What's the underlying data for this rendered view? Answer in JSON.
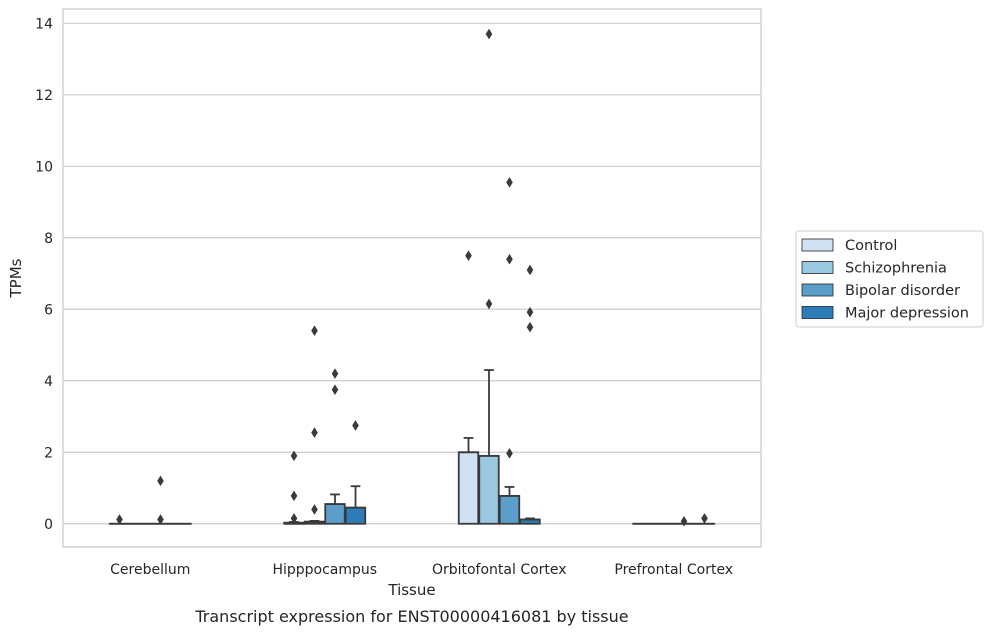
{
  "caption": "Transcript expression for ENST00000416081 by tissue",
  "chart_data": {
    "type": "box",
    "title": "",
    "xlabel": "Tissue",
    "ylabel": "TPMs",
    "ylim": [
      -0.65,
      14.4
    ],
    "yticks": [
      0,
      2,
      4,
      6,
      8,
      10,
      12,
      14
    ],
    "grid": "horizontal",
    "legend_position": "right",
    "categories": [
      "Cerebellum",
      "Hipppocampus",
      "Orbitofontal Cortex",
      "Prefrontal Cortex"
    ],
    "series": [
      {
        "name": "Control",
        "color": "#d0e1f2",
        "boxes": [
          {
            "q1": 0,
            "median": 0,
            "q3": 0,
            "whisker_low": 0,
            "whisker_high": 0,
            "outliers": [
              0.12
            ]
          },
          {
            "q1": 0,
            "median": 0,
            "q3": 0.03,
            "whisker_low": 0,
            "whisker_high": 0.05,
            "outliers": [
              0.15,
              0.78,
              1.9
            ]
          },
          {
            "q1": 0,
            "median": 2.0,
            "q3": 2.0,
            "whisker_low": 0,
            "whisker_high": 2.4,
            "outliers": [
              7.5
            ]
          },
          {
            "q1": 0,
            "median": 0,
            "q3": 0,
            "whisker_low": 0,
            "whisker_high": 0,
            "outliers": []
          }
        ]
      },
      {
        "name": "Schizophrenia",
        "color": "#9ac8e0",
        "boxes": [
          {
            "q1": 0,
            "median": 0,
            "q3": 0,
            "whisker_low": 0,
            "whisker_high": 0,
            "outliers": []
          },
          {
            "q1": 0,
            "median": 0.03,
            "q3": 0.06,
            "whisker_low": 0,
            "whisker_high": 0.08,
            "outliers": [
              0.4,
              2.55,
              5.4
            ]
          },
          {
            "q1": 0,
            "median": 1.9,
            "q3": 1.9,
            "whisker_low": 0,
            "whisker_high": 4.3,
            "outliers": [
              6.15,
              13.7
            ]
          },
          {
            "q1": 0,
            "median": 0,
            "q3": 0,
            "whisker_low": 0,
            "whisker_high": 0,
            "outliers": []
          }
        ]
      },
      {
        "name": "Bipolar disorder",
        "color": "#5a9ec9",
        "boxes": [
          {
            "q1": 0,
            "median": 0,
            "q3": 0,
            "whisker_low": 0,
            "whisker_high": 0,
            "outliers": [
              0.12,
              1.2
            ]
          },
          {
            "q1": 0,
            "median": 0.55,
            "q3": 0.55,
            "whisker_low": 0,
            "whisker_high": 0.82,
            "outliers": [
              3.75,
              4.2
            ]
          },
          {
            "q1": 0,
            "median": 0.78,
            "q3": 0.78,
            "whisker_low": 0,
            "whisker_high": 1.03,
            "outliers": [
              1.97,
              7.4,
              9.55
            ]
          },
          {
            "q1": 0,
            "median": 0,
            "q3": 0,
            "whisker_low": 0,
            "whisker_high": 0,
            "outliers": [
              0.07
            ]
          }
        ]
      },
      {
        "name": "Major depression",
        "color": "#2d7dbb",
        "boxes": [
          {
            "q1": 0,
            "median": 0,
            "q3": 0,
            "whisker_low": 0,
            "whisker_high": 0,
            "outliers": []
          },
          {
            "q1": 0,
            "median": 0.45,
            "q3": 0.45,
            "whisker_low": 0,
            "whisker_high": 1.05,
            "outliers": [
              2.75
            ]
          },
          {
            "q1": 0,
            "median": 0.12,
            "q3": 0.12,
            "whisker_low": 0,
            "whisker_high": 0.15,
            "outliers": [
              5.5,
              5.92,
              7.1
            ]
          },
          {
            "q1": 0,
            "median": 0,
            "q3": 0,
            "whisker_low": 0,
            "whisker_high": 0,
            "outliers": [
              0.15
            ]
          }
        ]
      }
    ]
  }
}
